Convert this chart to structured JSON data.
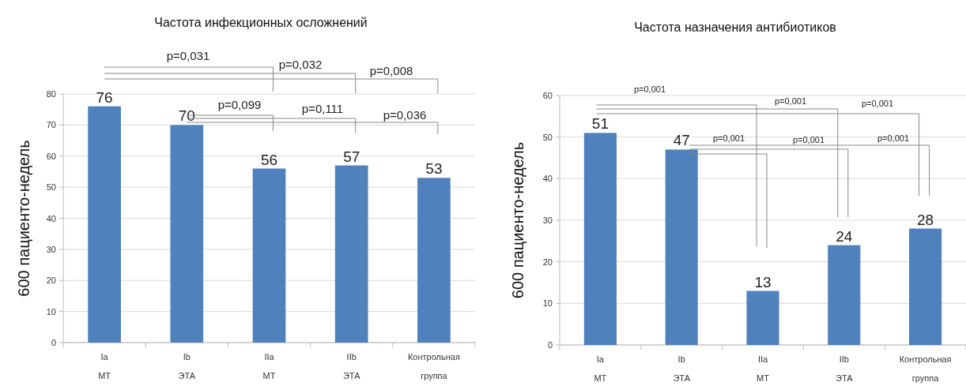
{
  "chart_data": [
    {
      "type": "bar",
      "title": "Частота инфекционных осложнений",
      "ylabel": "600 пациенто-недель",
      "categories": [
        "Ia\nМТ",
        "Ib\nЭТА",
        "IIa\nМТ",
        "IIb\nЭТА",
        "Контрольная\nгруппа"
      ],
      "values": [
        76,
        70,
        56,
        57,
        53
      ],
      "color": "#4f81bd",
      "ylim": [
        0,
        80
      ],
      "yticks": [
        0,
        10,
        20,
        30,
        40,
        50,
        60,
        70,
        80
      ],
      "grid": "y",
      "data_labels": true,
      "annotations": [
        "p=0,031",
        "p=0,032",
        "p=0,008",
        "p=0,099",
        "p=0,111",
        "p=0,036"
      ]
    },
    {
      "type": "bar",
      "title": "Частота назначения антибиотиков",
      "ylabel": "600 пациенто-недель",
      "categories": [
        "Ia\nМТ",
        "Ib\nЭТА",
        "IIa\nМТ",
        "IIb\nЭТА",
        "Контрольная\nгруппа"
      ],
      "values": [
        51,
        47,
        13,
        24,
        28
      ],
      "color": "#4f81bd",
      "ylim": [
        0,
        60
      ],
      "yticks": [
        0,
        10,
        20,
        30,
        40,
        50,
        60
      ],
      "grid": "y",
      "data_labels": true,
      "annotations": [
        "p=0,001",
        "p=0,001",
        "p=0,001",
        "p=0,001",
        "p=0,001",
        "p=0,001"
      ]
    }
  ]
}
